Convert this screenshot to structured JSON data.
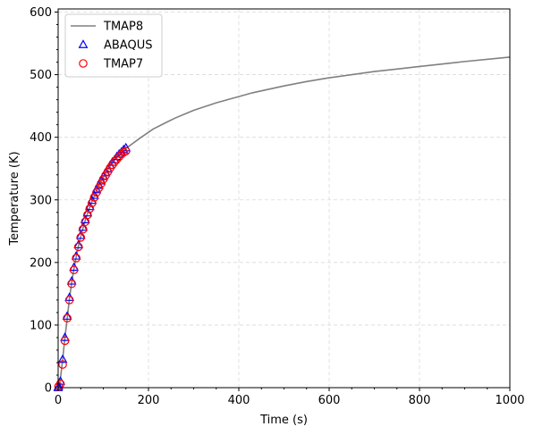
{
  "chart_data": {
    "type": "line",
    "xlabel": "Time (s)",
    "ylabel": "Temperature (K)",
    "xlim": [
      0,
      1000
    ],
    "ylim": [
      0,
      605
    ],
    "x_ticks": [
      "0",
      "200",
      "400",
      "600",
      "800",
      "1000"
    ],
    "y_ticks": [
      "0",
      "100",
      "200",
      "300",
      "400",
      "500",
      "600"
    ],
    "grid": true,
    "legend_position": "top-left",
    "series": [
      {
        "name": "TMAP8",
        "style": "line",
        "color": "#808080",
        "x": [
          0,
          3,
          6,
          10,
          15,
          20,
          25,
          30,
          35,
          40,
          45,
          50,
          55,
          60,
          65,
          70,
          75,
          80,
          85,
          90,
          95,
          100,
          105,
          110,
          115,
          120,
          125,
          130,
          135,
          140,
          145,
          150,
          180,
          210,
          240,
          260,
          300,
          350,
          400,
          430,
          500,
          550,
          600,
          700,
          750,
          800,
          850,
          900,
          1000
        ],
        "y": [
          0,
          5,
          20,
          45,
          80,
          110,
          142,
          168,
          190,
          209,
          226,
          241,
          255,
          267,
          278,
          288,
          298,
          306,
          315,
          322,
          329,
          336,
          342,
          348,
          354,
          359,
          364,
          368,
          372,
          376,
          379,
          382,
          398,
          413,
          424,
          431,
          443,
          455,
          465,
          471,
          482,
          489,
          495,
          505,
          509,
          513,
          517,
          521,
          528
        ]
      },
      {
        "name": "ABAQUS",
        "style": "markers",
        "marker": "triangle",
        "color": "#0000ff",
        "x": [
          0,
          1,
          5,
          10,
          15,
          20,
          25,
          30,
          35,
          40,
          45,
          50,
          55,
          60,
          65,
          70,
          75,
          80,
          85,
          90,
          95,
          100,
          105,
          110,
          115,
          120,
          125,
          130,
          135,
          140,
          145,
          150
        ],
        "y": [
          0,
          2,
          10,
          45,
          80,
          114,
          144,
          170,
          192,
          210,
          228,
          243,
          256,
          268,
          279,
          289,
          299,
          307,
          316,
          323,
          330,
          337,
          343,
          349,
          355,
          360,
          364,
          369,
          373,
          376,
          380,
          383
        ]
      },
      {
        "name": "TMAP7",
        "style": "markers",
        "marker": "circle",
        "color": "#ff0000",
        "x": [
          1,
          5,
          10,
          15,
          20,
          25,
          30,
          35,
          40,
          45,
          50,
          55,
          60,
          65,
          70,
          75,
          80,
          85,
          90,
          95,
          100,
          105,
          110,
          115,
          120,
          125,
          130,
          135,
          140,
          145,
          150
        ],
        "y": [
          2,
          6,
          37,
          75,
          111,
          140,
          166,
          188,
          207,
          225,
          240,
          253,
          265,
          276,
          286,
          295,
          304,
          312,
          319,
          326,
          333,
          339,
          345,
          351,
          356,
          361,
          365,
          369,
          373,
          376,
          378
        ]
      }
    ]
  }
}
